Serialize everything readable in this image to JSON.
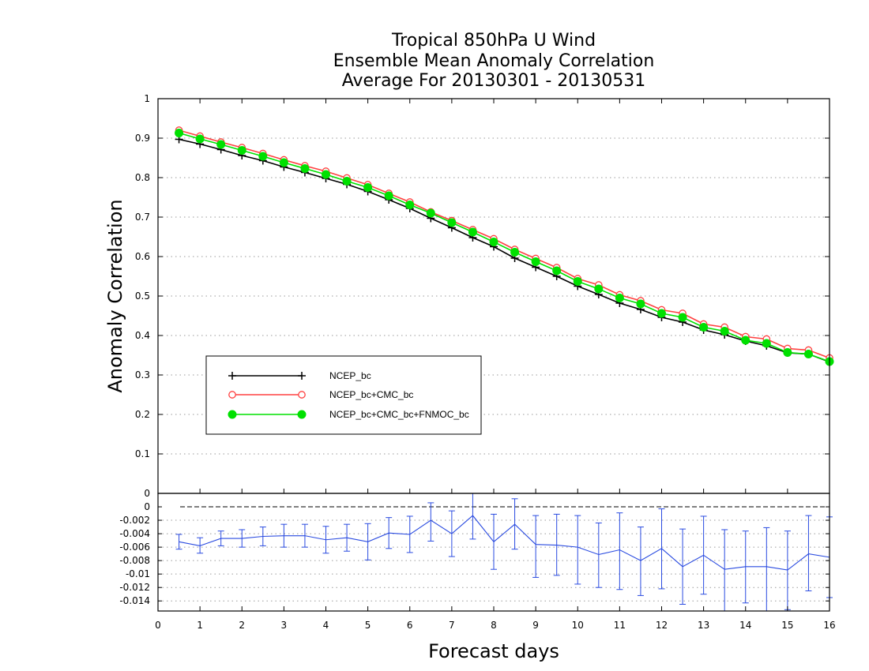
{
  "chart_data": {
    "type": "line",
    "title": [
      "Tropical 850hPa U Wind",
      "Ensemble Mean Anomaly Correlation",
      "Average For 20130301 - 20130531"
    ],
    "xlabel": "Forecast days",
    "ylabel": "Anomaly Correlation",
    "xlim": [
      0,
      16
    ],
    "x_ticks": [
      "0",
      "1",
      "2",
      "3",
      "4",
      "5",
      "6",
      "7",
      "8",
      "9",
      "10",
      "11",
      "12",
      "13",
      "14",
      "15",
      "16"
    ],
    "x": [
      0.5,
      1,
      1.5,
      2,
      2.5,
      3,
      3.5,
      4,
      4.5,
      5,
      5.5,
      6,
      6.5,
      7,
      7.5,
      8,
      8.5,
      9,
      9.5,
      10,
      10.5,
      11,
      11.5,
      12,
      12.5,
      13,
      13.5,
      14,
      14.5,
      15,
      15.5,
      16
    ],
    "main_panel": {
      "ylim": [
        0,
        1
      ],
      "y_ticks": [
        "0",
        "0.1",
        "0.2",
        "0.3",
        "0.4",
        "0.5",
        "0.6",
        "0.7",
        "0.8",
        "0.9",
        "1"
      ],
      "grid": true,
      "legend_position": "lower-left",
      "series": [
        {
          "name": "NCEP_bc",
          "color": "#000000",
          "marker": "plus",
          "values": [
            0.897,
            0.885,
            0.871,
            0.856,
            0.843,
            0.827,
            0.813,
            0.798,
            0.783,
            0.765,
            0.744,
            0.722,
            0.697,
            0.673,
            0.648,
            0.625,
            0.596,
            0.573,
            0.55,
            0.525,
            0.504,
            0.482,
            0.466,
            0.446,
            0.434,
            0.414,
            0.402,
            0.386,
            0.374,
            0.356,
            0.353,
            0.333
          ]
        },
        {
          "name": "NCEP_bc+CMC_bc",
          "color": "#ff4040",
          "marker": "open-circle",
          "values": [
            0.92,
            0.905,
            0.89,
            0.876,
            0.861,
            0.845,
            0.83,
            0.816,
            0.799,
            0.782,
            0.76,
            0.738,
            0.713,
            0.691,
            0.668,
            0.645,
            0.618,
            0.595,
            0.572,
            0.544,
            0.528,
            0.503,
            0.488,
            0.465,
            0.456,
            0.429,
            0.421,
            0.397,
            0.391,
            0.367,
            0.363,
            0.343
          ]
        },
        {
          "name": "NCEP_bc+CMC_bc+FNMOC_bc",
          "color": "#00e000",
          "marker": "filled-circle",
          "values": [
            0.913,
            0.898,
            0.884,
            0.869,
            0.854,
            0.838,
            0.823,
            0.808,
            0.791,
            0.775,
            0.754,
            0.731,
            0.71,
            0.686,
            0.662,
            0.637,
            0.611,
            0.587,
            0.564,
            0.537,
            0.518,
            0.495,
            0.48,
            0.456,
            0.446,
            0.421,
            0.411,
            0.388,
            0.38,
            0.357,
            0.353,
            0.334
          ]
        }
      ]
    },
    "difference_panel": {
      "ylim": [
        -0.0155,
        0.002
      ],
      "y_ticks": [
        "0",
        "0",
        "-0.002",
        "-0.004",
        "-0.006",
        "-0.008",
        "-0.01",
        "-0.012",
        "-0.014"
      ],
      "zero_line": "dashed",
      "series": [
        {
          "color": "#2a4be0",
          "values": [
            -0.0052,
            -0.0058,
            -0.0047,
            -0.0047,
            -0.0044,
            -0.0043,
            -0.0043,
            -0.0049,
            -0.0046,
            -0.0052,
            -0.0039,
            -0.0041,
            -0.002,
            -0.004,
            -0.0013,
            -0.0052,
            -0.0026,
            -0.0056,
            -0.0057,
            -0.006,
            -0.0071,
            -0.0064,
            -0.008,
            -0.0062,
            -0.0089,
            -0.0072,
            -0.0093,
            -0.0089,
            -0.0089,
            -0.0094,
            -0.007,
            -0.0075
          ],
          "error_low": [
            -0.0063,
            -0.0069,
            -0.0058,
            -0.006,
            -0.0058,
            -0.006,
            -0.006,
            -0.0069,
            -0.0066,
            -0.0079,
            -0.0062,
            -0.0068,
            -0.0051,
            -0.0074,
            -0.0048,
            -0.0093,
            -0.0063,
            -0.0105,
            -0.0102,
            -0.0115,
            -0.012,
            -0.0123,
            -0.0132,
            -0.0122,
            -0.0145,
            -0.013,
            -0.0155,
            -0.0143,
            -0.0155,
            -0.0153,
            -0.0125,
            -0.0135
          ],
          "error_high": [
            -0.0041,
            -0.0046,
            -0.0036,
            -0.0034,
            -0.003,
            -0.0026,
            -0.0026,
            -0.0029,
            -0.0026,
            -0.0025,
            -0.0016,
            -0.0014,
            0.0006,
            -0.0006,
            0.002,
            -0.0011,
            0.0012,
            -0.0013,
            -0.0011,
            -0.0013,
            -0.0024,
            -0.0009,
            -0.003,
            -0.0003,
            -0.0033,
            -0.0014,
            -0.0034,
            -0.0036,
            -0.0031,
            -0.0036,
            -0.0013,
            -0.0015
          ]
        }
      ]
    }
  }
}
